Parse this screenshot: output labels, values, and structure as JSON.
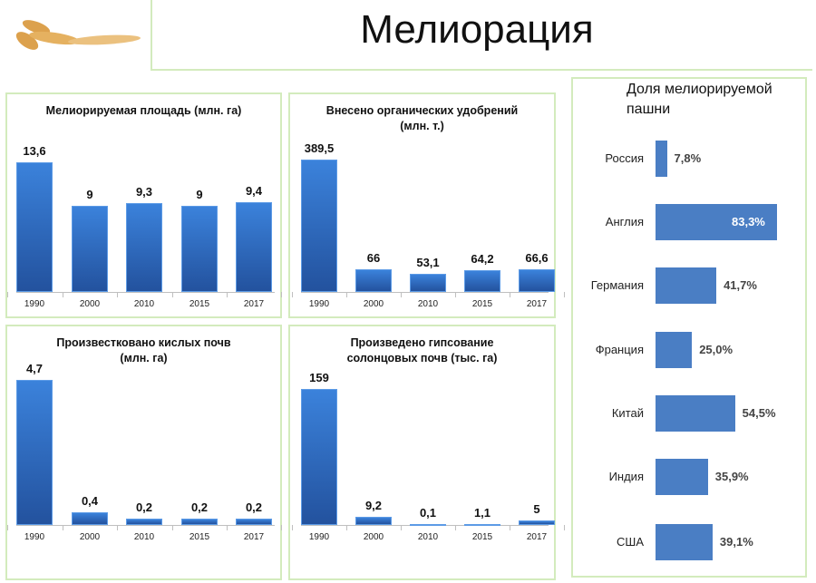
{
  "slide_title": "Мелиорация",
  "chart_data": [
    {
      "type": "bar",
      "title": "Мелиорируемая площадь (млн. га)",
      "categories": [
        "1990",
        "2000",
        "2010",
        "2015",
        "2017"
      ],
      "values": [
        13.6,
        9,
        9.3,
        9,
        9.4
      ],
      "labels": [
        "13,6",
        "9",
        "9,3",
        "9",
        "9,4"
      ]
    },
    {
      "type": "bar",
      "title": "Внесено органических удобрений (млн. т.)",
      "title_lines": [
        "Внесено органических удобрений",
        "(млн. т.)"
      ],
      "categories": [
        "1990",
        "2000",
        "2010",
        "2015",
        "2017"
      ],
      "values": [
        389.5,
        66,
        53.1,
        64.2,
        66.6
      ],
      "labels": [
        "389,5",
        "66",
        "53,1",
        "64,2",
        "66,6"
      ]
    },
    {
      "type": "bar",
      "title": "Произвестковано кислых почв (млн. га)",
      "title_lines": [
        "Произвестковано кислых почв",
        "(млн. га)"
      ],
      "categories": [
        "1990",
        "2000",
        "2010",
        "2015",
        "2017"
      ],
      "values": [
        4.7,
        0.4,
        0.2,
        0.2,
        0.2
      ],
      "labels": [
        "4,7",
        "0,4",
        "0,2",
        "0,2",
        "0,2"
      ]
    },
    {
      "type": "bar",
      "title": "Произведено гипсование солонцовых почв (тыс. га)",
      "title_lines": [
        "Произведено гипсование",
        "солонцовых почв (тыс. га)"
      ],
      "categories": [
        "1990",
        "2000",
        "2010",
        "2015",
        "2017"
      ],
      "values": [
        159,
        9.2,
        0.1,
        1.1,
        5
      ],
      "labels": [
        "159",
        "9,2",
        "0,1",
        "1,1",
        "5"
      ]
    },
    {
      "type": "bar",
      "orientation": "horizontal",
      "title": "Доля мелиорируемой пашни",
      "title_lines": [
        "Доля мелиорируемой",
        "пашни"
      ],
      "categories": [
        "Россия",
        "Англия",
        "Германия",
        "Франция",
        "Китай",
        "Индия",
        "США"
      ],
      "values": [
        7.8,
        83.3,
        41.7,
        25.0,
        54.5,
        35.9,
        39.1
      ],
      "labels": [
        "7,8%",
        "83,3%",
        "41,7%",
        "25,0%",
        "54,5%",
        "35,9%",
        "39,1%"
      ],
      "unit": "%"
    }
  ]
}
